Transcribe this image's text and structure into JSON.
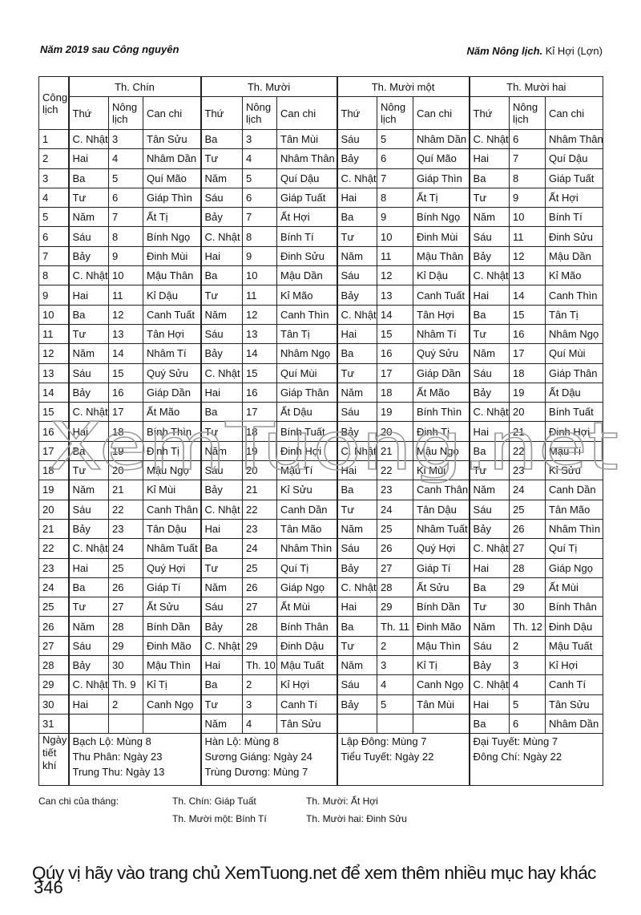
{
  "header": {
    "left": "Năm 2019  sau Công nguyên",
    "right_label": "Năm Nông lịch.",
    "right_value": "Kỉ Hợi (Lợn)"
  },
  "table": {
    "day_header": "Công lịch",
    "months": [
      "Th. Chín",
      "Th. Mười",
      "Th. Mười một",
      "Th. Mười hai"
    ],
    "sub_headers": [
      "Thứ",
      "Nông lịch",
      "Can chi"
    ],
    "rows": [
      [
        1,
        "C. Nhật",
        3,
        "Tân Sửu",
        "Ba",
        3,
        "Tân Mùi",
        "Sáu",
        5,
        "Nhâm Dần",
        "C. Nhật",
        6,
        "Nhâm Thân"
      ],
      [
        2,
        "Hai",
        4,
        "Nhâm Dần",
        "Tư",
        4,
        "Nhâm Thân",
        "Bảy",
        6,
        "Quí Mão",
        "Hai",
        7,
        "Quí Dậu"
      ],
      [
        3,
        "Ba",
        5,
        "Quí Mão",
        "Năm",
        5,
        "Quí Dậu",
        "C. Nhật",
        7,
        "Giáp Thìn",
        "Ba",
        8,
        "Giáp Tuất"
      ],
      [
        4,
        "Tư",
        6,
        "Giáp Thìn",
        "Sáu",
        6,
        "Giáp Tuất",
        "Hai",
        8,
        "Ất Tị",
        "Tư",
        9,
        "Ất Hợi"
      ],
      [
        5,
        "Năm",
        7,
        "Ất Tị",
        "Bảy",
        7,
        "Ất Hợi",
        "Ba",
        9,
        "Bính Ngọ",
        "Năm",
        10,
        "Bính Tí"
      ],
      [
        6,
        "Sáu",
        8,
        "Bính Ngọ",
        "C. Nhật",
        8,
        "Bính Tí",
        "Tư",
        10,
        "Đinh Mùi",
        "Sáu",
        11,
        "Đinh Sửu"
      ],
      [
        7,
        "Bảy",
        9,
        "Đinh Mùi",
        "Hai",
        9,
        "Đinh Sửu",
        "Năm",
        11,
        "Mậu Thân",
        "Bảy",
        12,
        "Mậu Dần"
      ],
      [
        8,
        "C. Nhật",
        10,
        "Mậu Thân",
        "Ba",
        10,
        "Mậu Dần",
        "Sáu",
        12,
        "Kỉ Dậu",
        "C. Nhật",
        13,
        "Kỉ Mão"
      ],
      [
        9,
        "Hai",
        11,
        "Kỉ Dậu",
        "Tư",
        11,
        "Kỉ Mão",
        "Bảy",
        13,
        "Canh Tuất",
        "Hai",
        14,
        "Canh Thìn"
      ],
      [
        10,
        "Ba",
        12,
        "Canh Tuất",
        "Năm",
        12,
        "Canh Thìn",
        "C. Nhật",
        14,
        "Tân Hợi",
        "Ba",
        15,
        "Tân Tị"
      ],
      [
        11,
        "Tư",
        13,
        "Tân Hợi",
        "Sáu",
        13,
        "Tân Tị",
        "Hai",
        15,
        "Nhâm Tí",
        "Tư",
        16,
        "Nhâm Ngọ"
      ],
      [
        12,
        "Năm",
        14,
        "Nhâm Tí",
        "Bảy",
        14,
        "Nhâm Ngọ",
        "Ba",
        16,
        "Quý Sửu",
        "Năm",
        17,
        "Quí Mùi"
      ],
      [
        13,
        "Sáu",
        15,
        "Quý Sửu",
        "C. Nhật",
        15,
        "Quí Mùi",
        "Tư",
        17,
        "Giáp Dần",
        "Sáu",
        18,
        "Giáp Thân"
      ],
      [
        14,
        "Bảy",
        16,
        "Giáp Dần",
        "Hai",
        16,
        "Giáp Thân",
        "Năm",
        18,
        "Ất Mão",
        "Bảy",
        19,
        "Ất Dậu"
      ],
      [
        15,
        "C. Nhật",
        17,
        "Ất Mão",
        "Ba",
        17,
        "Ất Dậu",
        "Sáu",
        19,
        "Bính Thìn",
        "C. Nhật",
        20,
        "Bính Tuất"
      ],
      [
        16,
        "Hai",
        18,
        "Bính Thìn",
        "Tư",
        18,
        "Bính Tuất",
        "Bảy",
        20,
        "Đinh Tị",
        "Hai",
        21,
        "Đinh Hợi"
      ],
      [
        17,
        "Ba",
        19,
        "Đinh Tị",
        "Năm",
        19,
        "Đinh Hợi",
        "C. Nhật",
        21,
        "Mậu Ngọ",
        "Ba",
        22,
        "Mậu Tí"
      ],
      [
        18,
        "Tư",
        20,
        "Mậu Ngọ",
        "Sáu",
        20,
        "Mậu Tí",
        "Hai",
        22,
        "Kỉ Mùi",
        "Tư",
        23,
        "Kỉ Sửu"
      ],
      [
        19,
        "Năm",
        21,
        "Kỉ Mùi",
        "Bảy",
        21,
        "Kỉ Sửu",
        "Ba",
        23,
        "Canh Thân",
        "Năm",
        24,
        "Canh Dần"
      ],
      [
        20,
        "Sáu",
        22,
        "Canh Thân",
        "C. Nhật",
        22,
        "Canh Dần",
        "Tư",
        24,
        "Tân Dậu",
        "Sáu",
        25,
        "Tân Mão"
      ],
      [
        21,
        "Bảy",
        23,
        "Tân Dậu",
        "Hai",
        23,
        "Tân Mão",
        "Năm",
        25,
        "Nhâm Tuất",
        "Bảy",
        26,
        "Nhâm Thìn"
      ],
      [
        22,
        "C. Nhật",
        24,
        "Nhâm Tuất",
        "Ba",
        24,
        "Nhâm Thìn",
        "Sáu",
        26,
        "Quý Hợi",
        "C. Nhật",
        27,
        "Quí Tị"
      ],
      [
        23,
        "Hai",
        25,
        "Quý Hợi",
        "Tư",
        25,
        "Quí Tị",
        "Bảy",
        27,
        "Giáp Tí",
        "Hai",
        28,
        "Giáp Ngọ"
      ],
      [
        24,
        "Ba",
        26,
        "Giáp Tí",
        "Năm",
        26,
        "Giáp Ngọ",
        "C. Nhật",
        28,
        "Ất Sửu",
        "Ba",
        29,
        "Ất Mùi"
      ],
      [
        25,
        "Tư",
        27,
        "Ất Sửu",
        "Sáu",
        27,
        "Ất Mùi",
        "Hai",
        29,
        "Bính Dần",
        "Tư",
        30,
        "Bính Thân"
      ],
      [
        26,
        "Năm",
        28,
        "Bính Dần",
        "Bảy",
        28,
        "Bính Thân",
        "Ba",
        "Th. 11",
        "Đinh Mão",
        "Năm",
        "Th. 12",
        "Đinh Dậu"
      ],
      [
        27,
        "Sáu",
        29,
        "Đinh Mão",
        "C. Nhật",
        29,
        "Đinh Dậu",
        "Tư",
        2,
        "Mậu Thìn",
        "Sáu",
        2,
        "Mậu Tuất"
      ],
      [
        28,
        "Bảy",
        30,
        "Mậu Thìn",
        "Hai",
        "Th. 10",
        "Mậu Tuất",
        "Năm",
        3,
        "Kỉ Tị",
        "Bảy",
        3,
        "Kỉ Hợi"
      ],
      [
        29,
        "C. Nhật",
        "Th. 9",
        "Kỉ Tị",
        "Ba",
        2,
        "Kỉ Hợi",
        "Sáu",
        4,
        "Canh Ngọ",
        "C. Nhật",
        4,
        "Canh Tí"
      ],
      [
        30,
        "Hai",
        2,
        "Canh Ngọ",
        "Tư",
        3,
        "Canh Tí",
        "Bảy",
        5,
        "Tân Mùi",
        "Hai",
        5,
        "Tân Sửu"
      ],
      [
        31,
        null,
        null,
        null,
        "Năm",
        4,
        "Tân Sửu",
        null,
        null,
        null,
        "Ba",
        6,
        "Nhâm Dần"
      ]
    ],
    "solar_terms_label": "Ngày tiết khí",
    "solar_terms": [
      [
        "Bạch Lộ: Mùng 8",
        "Thu Phân: Ngày 23",
        "Trung Thu: Ngày 13"
      ],
      [
        "Hàn Lộ: Mùng 8",
        "Sương Giáng: Ngày 24",
        "Trùng Dương: Mùng 7"
      ],
      [
        "Lập Đông: Mùng 7",
        "Tiểu Tuyết: Ngày 22"
      ],
      [
        "Đại Tuyết: Mùng 7",
        "Đông Chí: Ngày 22"
      ]
    ]
  },
  "month_can_chi": {
    "label": "Can chi của tháng:",
    "items": [
      "Th. Chín: Giáp Tuất",
      "Th. Mười: Ất Hợi",
      "Th. Mười một: Bính Tí",
      "Th. Mười hai: Đinh Sửu"
    ]
  },
  "watermark": "XemTuong.net",
  "footer": {
    "banner": "Qúy vị hãy vào trang chủ XemTuong.net để xem thêm nhiều mục hay khác",
    "page_number": 346
  }
}
